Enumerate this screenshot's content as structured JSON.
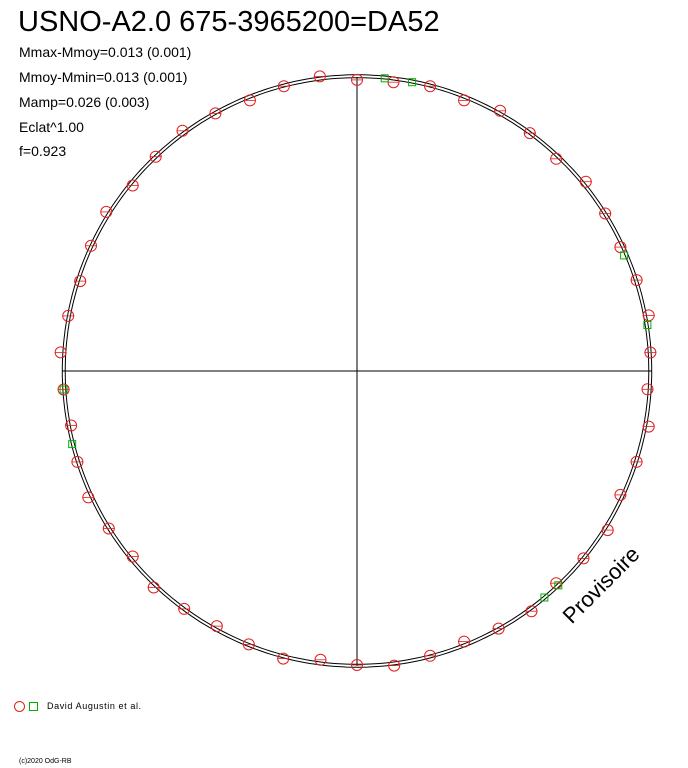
{
  "title": "USNO-A2.0 675-3965200=DA52",
  "stats": [
    "Mmax-Mmoy=0.013 (0.001)",
    "Mmoy-Mmin=0.013 (0.001)",
    "Mamp=0.026 (0.003)",
    "Eclat^1.00",
    "f=0.923"
  ],
  "watermark": "Provisoire",
  "legend": {
    "label": "David Augustin et al.",
    "marker_colors": [
      "#e02020",
      "#00b000"
    ]
  },
  "credit": "(c)2020 OdG-RB",
  "colors": {
    "observations_a": "#e02020",
    "observations_b": "#00b000",
    "curve": "#000000"
  },
  "chart_data": {
    "type": "scatter",
    "projection": "polar",
    "grid": "crosshair",
    "series": [
      {
        "marker": "circle",
        "color": "#e02020",
        "points": [
          [
            0.0,
            0.99
          ],
          [
            0.02,
            0.99
          ],
          [
            0.04,
            1.0
          ],
          [
            0.06,
            0.99
          ],
          [
            0.08,
            1.01
          ],
          [
            0.1,
            1.0
          ],
          [
            0.12,
            0.99
          ],
          [
            0.14,
            1.01
          ],
          [
            0.16,
            1.0
          ],
          [
            0.18,
            0.99
          ],
          [
            0.2,
            1.0
          ],
          [
            0.22,
            1.01
          ],
          [
            0.24,
            1.0
          ],
          [
            0.26,
            0.99
          ],
          [
            0.28,
            1.01
          ],
          [
            0.3,
            1.0
          ],
          [
            0.32,
            0.99
          ],
          [
            0.34,
            1.01
          ],
          [
            0.36,
            1.0
          ],
          [
            0.38,
            0.99
          ],
          [
            0.4,
            1.01
          ],
          [
            0.42,
            1.0
          ],
          [
            0.44,
            0.99
          ],
          [
            0.46,
            1.0
          ],
          [
            0.48,
            1.01
          ],
          [
            0.5,
            1.0
          ],
          [
            0.52,
            0.99
          ],
          [
            0.54,
            1.01
          ],
          [
            0.56,
            1.0
          ],
          [
            0.58,
            0.99
          ],
          [
            0.6,
            1.0
          ],
          [
            0.62,
            1.01
          ],
          [
            0.64,
            0.99
          ],
          [
            0.66,
            1.0
          ],
          [
            0.68,
            1.01
          ],
          [
            0.7,
            1.0
          ],
          [
            0.72,
            0.99
          ],
          [
            0.74,
            1.0
          ],
          [
            0.76,
            1.01
          ],
          [
            0.78,
            1.0
          ],
          [
            0.8,
            0.99
          ],
          [
            0.82,
            1.0
          ],
          [
            0.84,
            1.01
          ],
          [
            0.86,
            0.99
          ],
          [
            0.88,
            1.0
          ],
          [
            0.9,
            1.01
          ],
          [
            0.92,
            1.0
          ],
          [
            0.94,
            0.99
          ],
          [
            0.96,
            1.0
          ],
          [
            0.98,
            1.01
          ]
        ]
      },
      {
        "marker": "square",
        "color": "#00b000",
        "points": [
          [
            0.015,
            1.0
          ],
          [
            0.03,
            1.0
          ],
          [
            0.185,
            0.99
          ],
          [
            0.225,
            1.0
          ],
          [
            0.38,
            1.0
          ],
          [
            0.39,
            1.0
          ],
          [
            0.71,
            1.0
          ],
          [
            0.74,
            1.0
          ]
        ]
      }
    ],
    "curve": {
      "type": "light-curve",
      "amplitude": 0.026,
      "max_minus_mean": 0.013,
      "mean_minus_min": 0.013
    }
  }
}
